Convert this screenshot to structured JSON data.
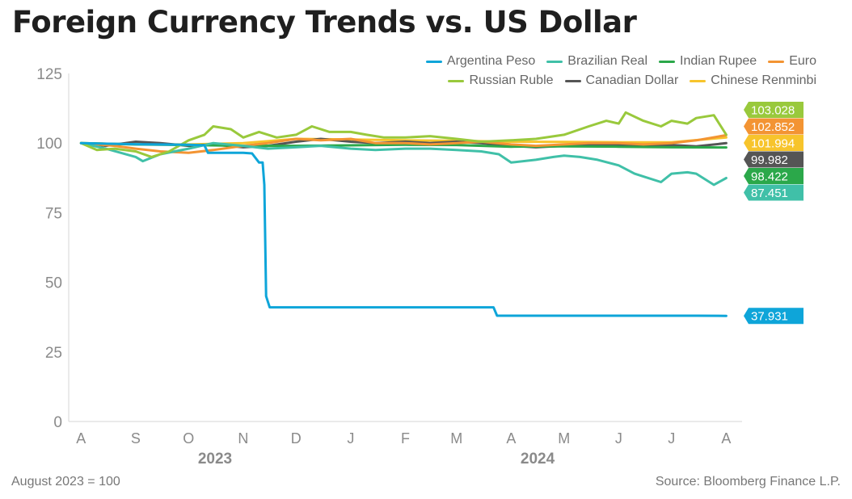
{
  "footnote": "August 2023 = 100",
  "source": "Source: Bloomberg Finance L.P.",
  "chart_data": {
    "type": "line",
    "title": "Foreign Currency Trends vs. US Dollar",
    "xlabel": "",
    "ylabel": "",
    "ylim": [
      0,
      125
    ],
    "yticks": [
      0,
      25,
      50,
      75,
      100,
      125
    ],
    "xlim": [
      "2023-07-25",
      "2024-08-10"
    ],
    "x_tick_labels": [
      {
        "label": "A",
        "date": "2023-08-01"
      },
      {
        "label": "S",
        "date": "2023-09-01"
      },
      {
        "label": "O",
        "date": "2023-10-01"
      },
      {
        "label": "N",
        "date": "2023-11-01"
      },
      {
        "label": "D",
        "date": "2023-12-01"
      },
      {
        "label": "J",
        "date": "2024-01-01"
      },
      {
        "label": "F",
        "date": "2024-02-01"
      },
      {
        "label": "M",
        "date": "2024-03-01"
      },
      {
        "label": "A",
        "date": "2024-04-01"
      },
      {
        "label": "M",
        "date": "2024-05-01"
      },
      {
        "label": "J",
        "date": "2024-06-01"
      },
      {
        "label": "J",
        "date": "2024-07-01"
      },
      {
        "label": "A",
        "date": "2024-08-01"
      }
    ],
    "year_labels": [
      {
        "label": "2023",
        "date": "2023-10-16"
      },
      {
        "label": "2024",
        "date": "2024-04-16"
      }
    ],
    "grid": false,
    "legend_position": "top-right",
    "series": [
      {
        "name": "Argentina Peso",
        "color": "#0ea5d9",
        "end_label": "37.931",
        "x": [
          "2023-08-01",
          "2023-08-14",
          "2023-09-01",
          "2023-10-01",
          "2023-10-10",
          "2023-10-12",
          "2023-11-01",
          "2023-11-06",
          "2023-11-10",
          "2023-11-12",
          "2023-11-13",
          "2023-11-14",
          "2023-11-16",
          "2023-11-20",
          "2023-12-15",
          "2024-01-15",
          "2024-02-15",
          "2024-03-10",
          "2024-03-22",
          "2024-03-24",
          "2024-04-15",
          "2024-05-15",
          "2024-06-15",
          "2024-07-15",
          "2024-08-01"
        ],
        "y": [
          100,
          99.8,
          99.6,
          99.4,
          99.2,
          96.5,
          96.5,
          96.3,
          93,
          93,
          85,
          45,
          41,
          41,
          41,
          41,
          41,
          41,
          41,
          38,
          38,
          38,
          38,
          38,
          37.931
        ]
      },
      {
        "name": "Brazilian Real",
        "color": "#40c0a8",
        "end_label": "87.451",
        "x": [
          "2023-08-01",
          "2023-08-15",
          "2023-09-01",
          "2023-09-05",
          "2023-09-15",
          "2023-10-01",
          "2023-10-15",
          "2023-11-01",
          "2023-11-15",
          "2023-12-01",
          "2023-12-15",
          "2024-01-01",
          "2024-01-15",
          "2024-02-01",
          "2024-02-15",
          "2024-03-01",
          "2024-03-15",
          "2024-03-25",
          "2024-04-01",
          "2024-04-15",
          "2024-04-25",
          "2024-05-01",
          "2024-05-10",
          "2024-05-20",
          "2024-06-01",
          "2024-06-10",
          "2024-06-15",
          "2024-06-25",
          "2024-07-01",
          "2024-07-10",
          "2024-07-15",
          "2024-07-25",
          "2024-08-01"
        ],
        "y": [
          100,
          98,
          95,
          93.5,
          96,
          98,
          100,
          99,
          98,
          98.5,
          99,
          98,
          97.5,
          98,
          98,
          97.5,
          97,
          96,
          93,
          94,
          95,
          95.5,
          95,
          94,
          92,
          89,
          88,
          86,
          89,
          89.5,
          89,
          85,
          87.451
        ]
      },
      {
        "name": "Indian Rupee",
        "color": "#2ba84a",
        "end_label": "98.422",
        "x": [
          "2023-08-01",
          "2023-09-01",
          "2023-10-01",
          "2023-11-01",
          "2023-12-01",
          "2024-01-01",
          "2024-02-01",
          "2024-03-01",
          "2024-04-01",
          "2024-05-01",
          "2024-06-01",
          "2024-07-01",
          "2024-08-01"
        ],
        "y": [
          100,
          99.5,
          99.3,
          99,
          99,
          99.2,
          99.4,
          99.3,
          98.7,
          98.8,
          98.7,
          98.5,
          98.422
        ]
      },
      {
        "name": "Euro",
        "color": "#f39433",
        "end_label": "102.852",
        "x": [
          "2023-08-01",
          "2023-08-20",
          "2023-09-01",
          "2023-09-15",
          "2023-10-01",
          "2023-10-15",
          "2023-11-01",
          "2023-11-15",
          "2023-12-01",
          "2023-12-15",
          "2024-01-01",
          "2024-01-15",
          "2024-02-01",
          "2024-02-15",
          "2024-03-01",
          "2024-03-15",
          "2024-04-01",
          "2024-04-15",
          "2024-05-01",
          "2024-05-15",
          "2024-06-01",
          "2024-06-15",
          "2024-07-01",
          "2024-07-15",
          "2024-08-01"
        ],
        "y": [
          100,
          99,
          98,
          97,
          96.5,
          97.5,
          99,
          100,
          101.5,
          101,
          101.5,
          100,
          100,
          99.5,
          100,
          100.5,
          99.5,
          99,
          99.5,
          100,
          100,
          99.5,
          100,
          101,
          102.852
        ]
      },
      {
        "name": "Russian Ruble",
        "color": "#99c93c",
        "end_label": "103.028",
        "x": [
          "2023-08-01",
          "2023-08-10",
          "2023-08-20",
          "2023-09-01",
          "2023-09-10",
          "2023-09-20",
          "2023-10-01",
          "2023-10-10",
          "2023-10-15",
          "2023-10-25",
          "2023-11-01",
          "2023-11-10",
          "2023-11-20",
          "2023-12-01",
          "2023-12-10",
          "2023-12-20",
          "2024-01-01",
          "2024-01-10",
          "2024-01-20",
          "2024-02-01",
          "2024-02-15",
          "2024-03-01",
          "2024-03-15",
          "2024-04-01",
          "2024-04-15",
          "2024-05-01",
          "2024-05-15",
          "2024-05-25",
          "2024-06-01",
          "2024-06-05",
          "2024-06-15",
          "2024-06-25",
          "2024-07-01",
          "2024-07-10",
          "2024-07-15",
          "2024-07-25",
          "2024-08-01"
        ],
        "y": [
          100,
          97.5,
          98,
          97,
          95,
          97,
          101,
          103,
          106,
          105,
          102,
          104,
          102,
          103,
          106,
          104,
          104,
          103,
          102,
          102,
          102.5,
          101.5,
          100.5,
          101,
          101.5,
          103,
          106,
          108,
          107,
          111,
          108,
          106,
          108,
          107,
          109,
          110,
          103.028
        ]
      },
      {
        "name": "Canadian Dollar",
        "color": "#555555",
        "end_label": "99.982",
        "x": [
          "2023-08-01",
          "2023-08-15",
          "2023-09-01",
          "2023-09-15",
          "2023-10-01",
          "2023-10-15",
          "2023-11-01",
          "2023-11-15",
          "2023-12-01",
          "2023-12-15",
          "2024-01-01",
          "2024-01-15",
          "2024-02-01",
          "2024-02-15",
          "2024-03-01",
          "2024-03-15",
          "2024-04-01",
          "2024-04-15",
          "2024-05-01",
          "2024-05-15",
          "2024-06-01",
          "2024-06-15",
          "2024-07-01",
          "2024-07-15",
          "2024-08-01"
        ],
        "y": [
          100,
          99,
          100.5,
          100,
          99,
          99.5,
          98.5,
          99,
          100.5,
          101.5,
          100.5,
          100,
          100.5,
          100,
          100.5,
          100,
          99,
          98.5,
          99,
          99.5,
          99.3,
          99,
          99.3,
          98.8,
          99.982
        ]
      },
      {
        "name": "Chinese Renminbi",
        "color": "#f7c42c",
        "end_label": "101.994",
        "x": [
          "2023-08-01",
          "2023-09-01",
          "2023-10-01",
          "2023-11-01",
          "2023-12-01",
          "2024-01-01",
          "2024-02-01",
          "2024-03-01",
          "2024-04-01",
          "2024-05-01",
          "2024-06-01",
          "2024-07-01",
          "2024-08-01"
        ],
        "y": [
          100,
          99.5,
          99.5,
          100,
          101.5,
          101.3,
          101,
          100.8,
          100.5,
          100.4,
          100.3,
          100.3,
          101.994
        ]
      }
    ],
    "label_order": [
      "Russian Ruble",
      "Euro",
      "Chinese Renminbi",
      "Canadian Dollar",
      "Indian Rupee",
      "Brazilian Real",
      "Argentina Peso"
    ]
  }
}
